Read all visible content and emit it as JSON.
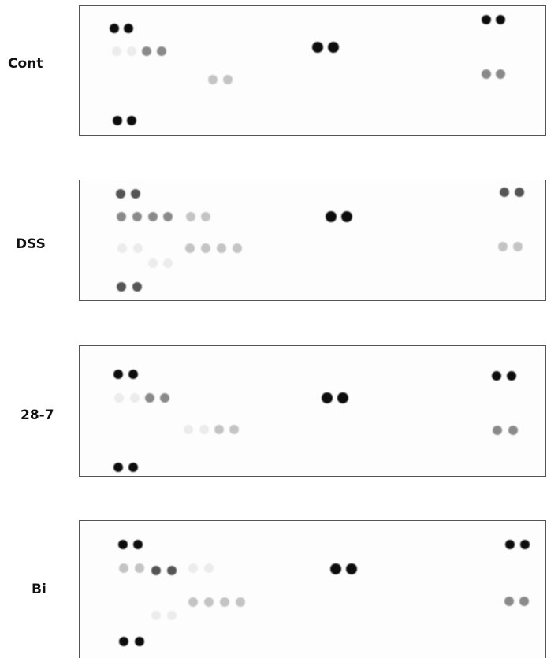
{
  "panels": [
    {
      "label": "Cont"
    },
    {
      "label": "DSS"
    },
    {
      "label": "28-7"
    },
    {
      "label": "Bi"
    }
  ]
}
